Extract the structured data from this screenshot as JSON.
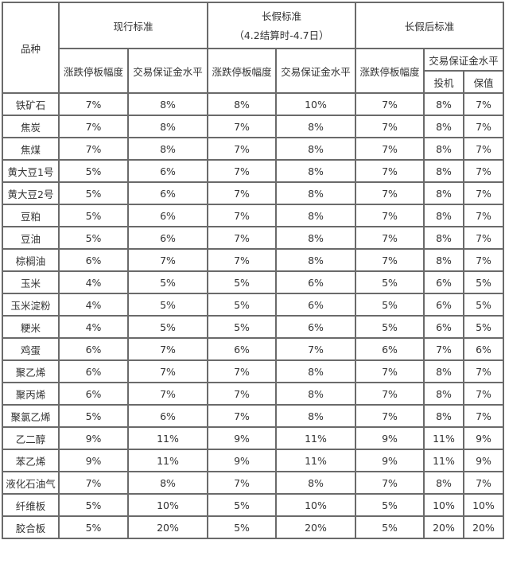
{
  "header": {
    "variety": "品种",
    "current": "现行标准",
    "holiday": "长假标准",
    "holiday_note": "（4.2结算时-4.7日）",
    "after": "长假后标准",
    "limit": "涨跌停板幅度",
    "margin": "交易保证金水平",
    "speculative": "投机",
    "hedging": "保值"
  },
  "rows": [
    [
      "铁矿石",
      "7%",
      "8%",
      "8%",
      "10%",
      "7%",
      "8%",
      "7%"
    ],
    [
      "焦炭",
      "7%",
      "8%",
      "7%",
      "8%",
      "7%",
      "8%",
      "7%"
    ],
    [
      "焦煤",
      "7%",
      "8%",
      "7%",
      "8%",
      "7%",
      "8%",
      "7%"
    ],
    [
      "黄大豆1号",
      "5%",
      "6%",
      "7%",
      "8%",
      "7%",
      "8%",
      "7%"
    ],
    [
      "黄大豆2号",
      "5%",
      "6%",
      "7%",
      "8%",
      "7%",
      "8%",
      "7%"
    ],
    [
      "豆粕",
      "5%",
      "6%",
      "7%",
      "8%",
      "7%",
      "8%",
      "7%"
    ],
    [
      "豆油",
      "5%",
      "6%",
      "7%",
      "8%",
      "7%",
      "8%",
      "7%"
    ],
    [
      "棕榈油",
      "6%",
      "7%",
      "7%",
      "8%",
      "7%",
      "8%",
      "7%"
    ],
    [
      "玉米",
      "4%",
      "5%",
      "5%",
      "6%",
      "5%",
      "6%",
      "5%"
    ],
    [
      "玉米淀粉",
      "4%",
      "5%",
      "5%",
      "6%",
      "5%",
      "6%",
      "5%"
    ],
    [
      "粳米",
      "4%",
      "5%",
      "5%",
      "6%",
      "5%",
      "6%",
      "5%"
    ],
    [
      "鸡蛋",
      "6%",
      "7%",
      "6%",
      "7%",
      "6%",
      "7%",
      "6%"
    ],
    [
      "聚乙烯",
      "6%",
      "7%",
      "7%",
      "8%",
      "7%",
      "8%",
      "7%"
    ],
    [
      "聚丙烯",
      "6%",
      "7%",
      "7%",
      "8%",
      "7%",
      "8%",
      "7%"
    ],
    [
      "聚氯乙烯",
      "5%",
      "6%",
      "7%",
      "8%",
      "7%",
      "8%",
      "7%"
    ],
    [
      "乙二醇",
      "9%",
      "11%",
      "9%",
      "11%",
      "9%",
      "11%",
      "9%"
    ],
    [
      "苯乙烯",
      "9%",
      "11%",
      "9%",
      "11%",
      "9%",
      "11%",
      "9%"
    ],
    [
      "液化石油气",
      "7%",
      "8%",
      "7%",
      "8%",
      "7%",
      "8%",
      "7%"
    ],
    [
      "纤维板",
      "5%",
      "10%",
      "5%",
      "10%",
      "5%",
      "10%",
      "10%"
    ],
    [
      "胶合板",
      "5%",
      "20%",
      "5%",
      "20%",
      "5%",
      "20%",
      "20%"
    ]
  ]
}
